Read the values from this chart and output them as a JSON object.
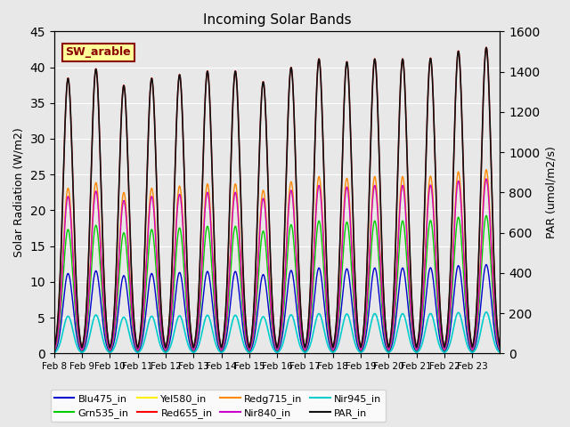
{
  "title": "Incoming Solar Bands",
  "ylabel_left": "Solar Radiation (W/m2)",
  "ylabel_right": "PAR (umol/m2/s)",
  "ylim_left": [
    0,
    45
  ],
  "ylim_right": [
    0,
    1600
  ],
  "background_color": "#e8e8e8",
  "plot_bg_color": "#e8e8e8",
  "annotation_text": "SW_arable",
  "annotation_color": "#8b0000",
  "annotation_bg": "#ffff99",
  "annotation_edge": "#8b0000",
  "xtick_labels": [
    "Feb 8",
    "Feb 9",
    "Feb 10",
    "Feb 11",
    "Feb 12",
    "Feb 13",
    "Feb 14",
    "Feb 15",
    "Feb 16",
    "Feb 17",
    "Feb 18",
    "Feb 19",
    "Feb 20",
    "Feb 21",
    "Feb 22",
    "Feb 23"
  ],
  "yticks_left": [
    0,
    5,
    10,
    15,
    20,
    25,
    30,
    35,
    40,
    45
  ],
  "yticks_right": [
    0,
    200,
    400,
    600,
    800,
    1000,
    1200,
    1400,
    1600
  ],
  "series_order": [
    "Blu475_in",
    "Grn535_in",
    "Yel580_in",
    "Red655_in",
    "Redg715_in",
    "Nir840_in",
    "Nir945_in",
    "PAR_in"
  ],
  "series": {
    "Blu475_in": {
      "color": "#0000cc",
      "lw": 1.0,
      "scale": 0.29,
      "axis": "left"
    },
    "Grn535_in": {
      "color": "#00cc00",
      "lw": 1.0,
      "scale": 0.45,
      "axis": "left"
    },
    "Yel580_in": {
      "color": "#ffee00",
      "lw": 1.0,
      "scale": 0.57,
      "axis": "left"
    },
    "Red655_in": {
      "color": "#ff0000",
      "lw": 1.0,
      "scale": 1.0,
      "axis": "left"
    },
    "Redg715_in": {
      "color": "#ff8800",
      "lw": 1.0,
      "scale": 0.6,
      "axis": "left"
    },
    "Nir840_in": {
      "color": "#cc00cc",
      "lw": 1.0,
      "scale": 0.57,
      "axis": "left"
    },
    "Nir945_in": {
      "color": "#00cccc",
      "lw": 1.2,
      "scale": 0.135,
      "axis": "left"
    },
    "PAR_in": {
      "color": "#111111",
      "lw": 1.2,
      "scale": 35.5,
      "axis": "right"
    }
  },
  "peaks": [
    38.5,
    39.8,
    37.5,
    38.5,
    39.0,
    39.5,
    39.5,
    38.0,
    40.0,
    41.2,
    40.8,
    41.2,
    41.2,
    41.3,
    42.3,
    42.8
  ],
  "day_points": 96,
  "n_days": 16,
  "fig_w": 6.4,
  "fig_h": 4.8,
  "dpi": 100
}
